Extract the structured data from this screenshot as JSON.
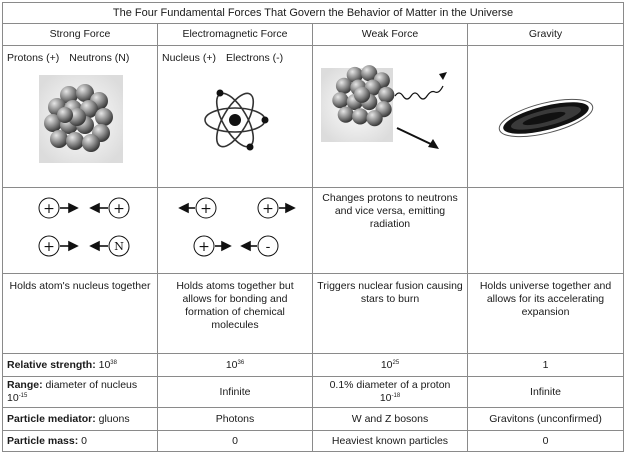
{
  "title": "The Four Fundamental Forces That Govern the Behavior of Matter in the Universe",
  "columns": [
    "Strong Force",
    "Electromagnetic Force",
    "Weak Force",
    "Gravity"
  ],
  "image_row": {
    "strong_particles": [
      "Protons (+)",
      "Neutrons (N)"
    ],
    "em_particles": [
      "Nucleus (+)",
      "Electrons (-)"
    ]
  },
  "particles_row": {
    "strong_symbols": [
      "+",
      "+",
      "+",
      "N"
    ],
    "em_symbols": [
      "+",
      "+",
      "+",
      "-"
    ],
    "weak_text": "Changes protons to neutrons and vice versa, emitting radiation",
    "gravity_text": ""
  },
  "role_row": [
    "Holds atom's nucleus together",
    "Holds atoms together but allows for bonding and formation of chemical molecules",
    "Triggers nuclear fusion causing stars to burn",
    "Holds universe together and allows for its accelerating expansion"
  ],
  "strength": {
    "label": "Relative strength:",
    "strong_base": "10",
    "strong_exp": "38",
    "em_base": "10",
    "em_exp": "36",
    "weak_base": "10",
    "weak_exp": "25",
    "gravity": "1"
  },
  "range": {
    "label": "Range:",
    "strong_text": "diameter of nucleus",
    "strong_base": "10",
    "strong_exp": "-15",
    "em": "Infinite",
    "weak_text": "0.1% diameter of a proton",
    "weak_base": "10",
    "weak_exp": "-18",
    "gravity": "Infinite"
  },
  "mediator": {
    "label": "Particle mediator:",
    "strong": "gluons",
    "em": "Photons",
    "weak": "W and Z bosons",
    "gravity": "Gravitons (unconfirmed)"
  },
  "mass": {
    "label": "Particle mass:",
    "strong": "0",
    "em": "0",
    "weak": "Heaviest known particles",
    "gravity": "0"
  }
}
